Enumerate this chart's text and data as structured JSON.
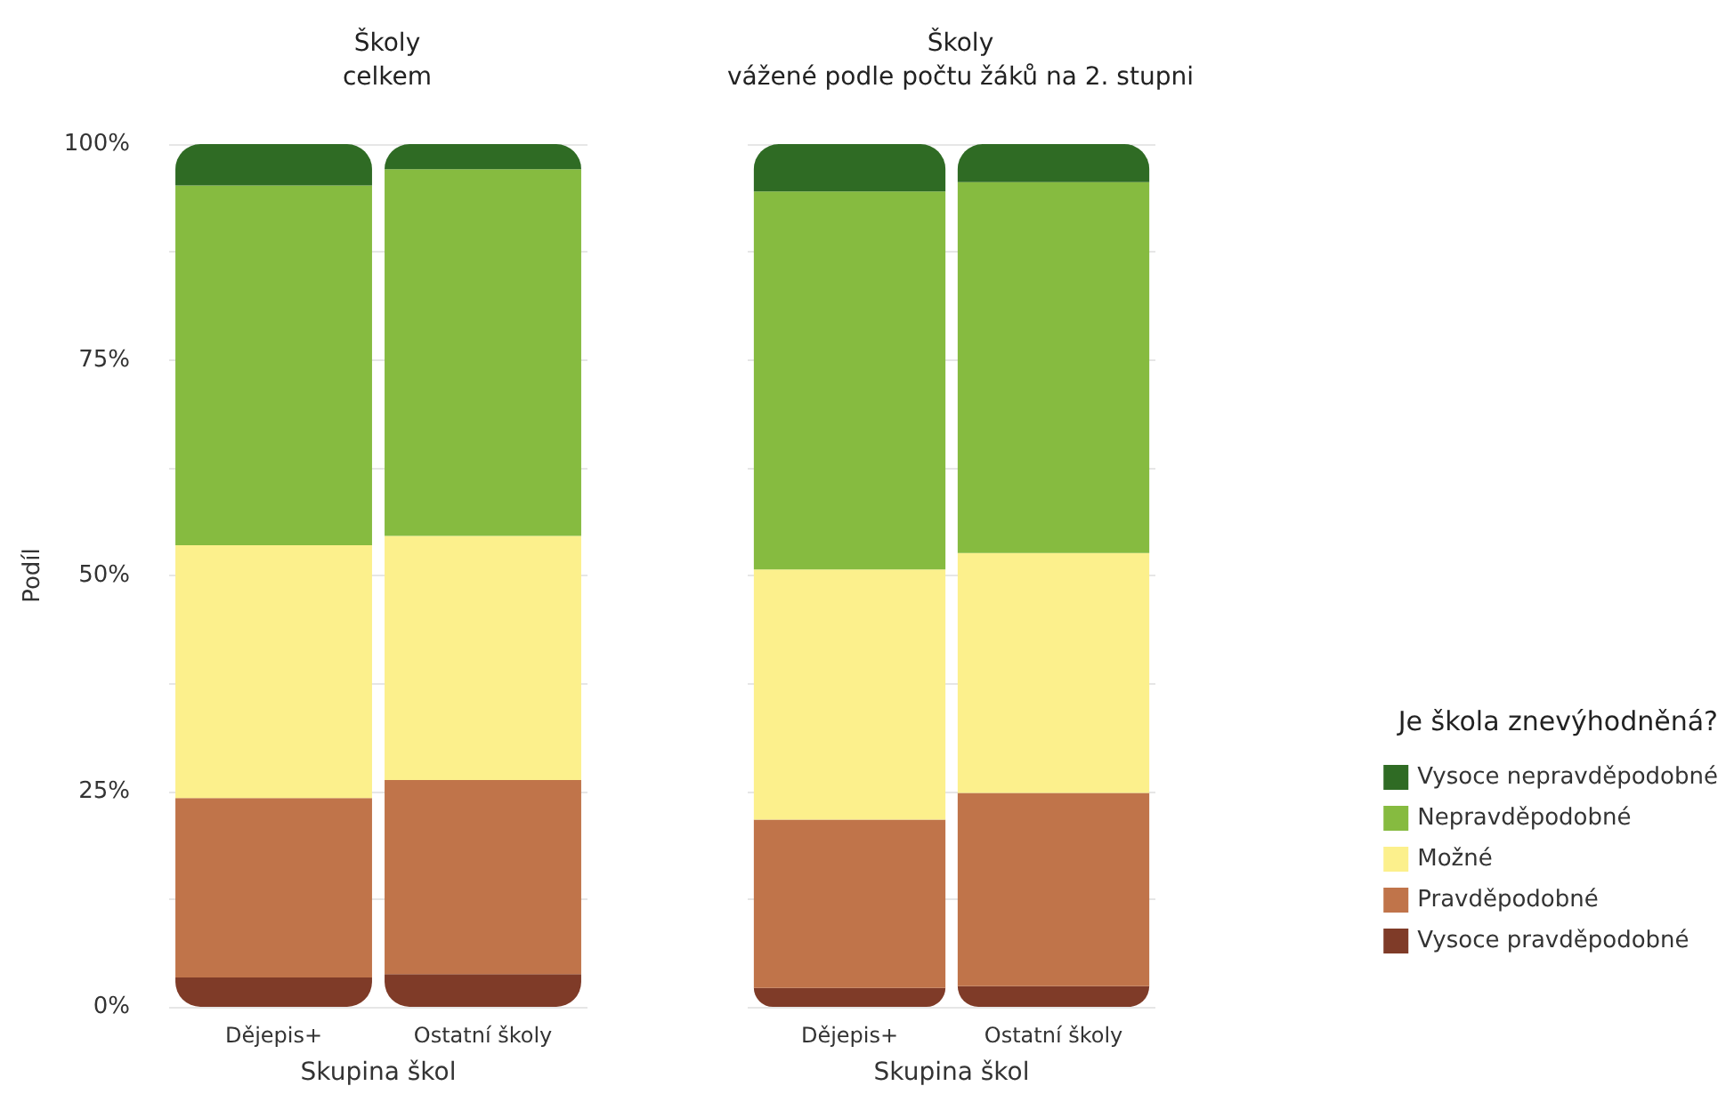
{
  "chart_data": [
    {
      "type": "bar",
      "title": "Školy\ncelkem",
      "xlabel": "Skupina škol",
      "ylabel": "Podíl",
      "categories": [
        "Dějepis+",
        "Ostatní školy"
      ],
      "stacked": true,
      "series": [
        {
          "color": "#7f3b28",
          "values": [
            3.4,
            3.8
          ]
        },
        {
          "color": "#c0744a",
          "values": [
            20.8,
            22.5
          ]
        },
        {
          "color": "#fcf08c",
          "values": [
            29.3,
            28.3
          ]
        },
        {
          "color": "#86bb40",
          "values": [
            41.7,
            42.5
          ]
        },
        {
          "color": "#2f6b24",
          "values": [
            4.8,
            2.9
          ]
        }
      ],
      "ylim": [
        0,
        100
      ],
      "yticks": [
        {
          "value": 0,
          "label": "0%"
        },
        {
          "value": 12.5,
          "label": null
        },
        {
          "value": 25,
          "label": "25%"
        },
        {
          "value": 37.5,
          "label": null
        },
        {
          "value": 50,
          "label": "50%"
        },
        {
          "value": 62.5,
          "label": null
        },
        {
          "value": 75,
          "label": "75%"
        },
        {
          "value": 87.5,
          "label": null
        },
        {
          "value": 100,
          "label": "100%"
        }
      ],
      "grid": "y"
    },
    {
      "type": "bar",
      "title": "Školy\nvážené podle počtu žáků na 2. stupni",
      "xlabel": "Skupina škol",
      "legend_title": "Je škola znevýhodněná?",
      "categories": [
        "Dějepis+",
        "Ostatní školy"
      ],
      "stacked": true,
      "series": [
        {
          "name": "Vysoce pravděpodobné",
          "color": "#7f3b28",
          "values": [
            2.2,
            2.4
          ]
        },
        {
          "name": "Pravděpodobné",
          "color": "#c0744a",
          "values": [
            19.5,
            22.4
          ]
        },
        {
          "name": "Možné",
          "color": "#fcf08c",
          "values": [
            29.0,
            27.8
          ]
        },
        {
          "name": "Nepravděpodobné",
          "color": "#86bb40",
          "values": [
            43.8,
            43.0
          ]
        },
        {
          "name": "Vysoce nepravděpodobné",
          "color": "#2f6b24",
          "values": [
            5.5,
            4.4
          ]
        }
      ],
      "ylim": [
        0,
        100
      ],
      "yticks": [
        {
          "value": 0,
          "label": null
        },
        {
          "value": 12.5,
          "label": null
        },
        {
          "value": 25,
          "label": null
        },
        {
          "value": 37.5,
          "label": null
        },
        {
          "value": 50,
          "label": null
        },
        {
          "value": 62.5,
          "label": null
        },
        {
          "value": 75,
          "label": null
        },
        {
          "value": 87.5,
          "label": null
        },
        {
          "value": 100,
          "label": null
        }
      ],
      "grid": "y",
      "tick_labels": "x",
      "legend": "right"
    }
  ]
}
